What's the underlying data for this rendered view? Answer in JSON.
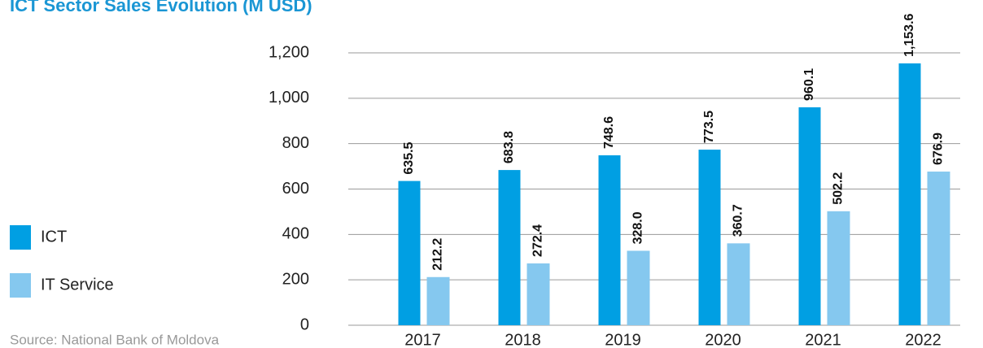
{
  "chart_data": {
    "type": "bar",
    "title": "ICT Sector Sales Evolution (M USD)",
    "source": "Source: National Bank of Moldova",
    "categories": [
      "2017",
      "2018",
      "2019",
      "2020",
      "2021",
      "2022"
    ],
    "series": [
      {
        "name": "ICT",
        "color": "#009fe3",
        "values": [
          635.5,
          683.8,
          748.6,
          773.5,
          960.1,
          1153.6
        ],
        "value_labels": [
          "635.5",
          "683.8",
          "748.6",
          "773.5",
          "960.1",
          "1,153.6"
        ]
      },
      {
        "name": "IT Service",
        "color": "#85c8ef",
        "values": [
          212.2,
          272.4,
          328.0,
          360.7,
          502.2,
          676.9
        ],
        "value_labels": [
          "212.2",
          "272.4",
          "328.0",
          "360.7",
          "502.2",
          "676.9"
        ]
      }
    ],
    "ylim": [
      0,
      1200
    ],
    "yticks": [
      0,
      200,
      400,
      600,
      800,
      {
        "value": 1000,
        "label": "1,000"
      },
      {
        "value": 1200,
        "label": "1,200"
      }
    ],
    "grid": true,
    "legend": "left"
  }
}
